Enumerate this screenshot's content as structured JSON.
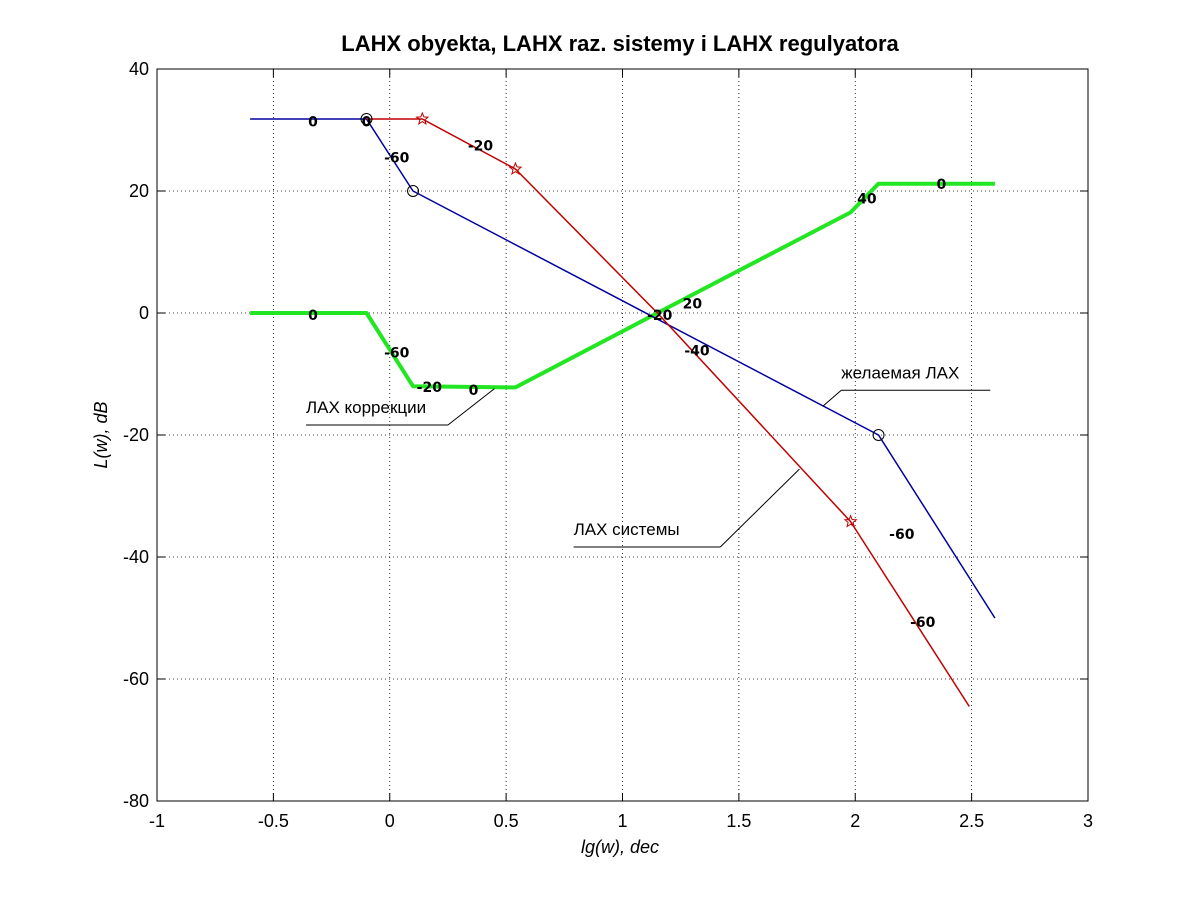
{
  "chart_data": {
    "type": "line",
    "title": "LAHX obyekta, LAHX raz. sistemy i LAHX regulyatora",
    "xlabel": "lg(w), dec",
    "ylabel": "L(w), dB",
    "xlim": [
      -1,
      3
    ],
    "ylim": [
      -80,
      40
    ],
    "xticks": [
      -1,
      -0.5,
      0,
      0.5,
      1,
      1.5,
      2,
      2.5,
      3
    ],
    "xtick_labels": [
      "-1",
      "-0.5",
      "0",
      "0.5",
      "1",
      "1.5",
      "2",
      "2.5",
      "3"
    ],
    "yticks": [
      -80,
      -60,
      -40,
      -20,
      0,
      20,
      40
    ],
    "ytick_labels": [
      "-80",
      "-60",
      "-40",
      "-20",
      "0",
      "20",
      "40"
    ],
    "grid": true,
    "series": [
      {
        "color": "#0000a0",
        "line_width": 1.5,
        "marker": "circle",
        "x": [
          -0.6,
          -0.1,
          0.1,
          2.1,
          2.6
        ],
        "y": [
          31.8,
          31.8,
          20,
          -20,
          -50
        ],
        "marker_points": [
          [
            -0.1,
            31.8
          ],
          [
            0.1,
            20
          ],
          [
            2.1,
            -20
          ]
        ]
      },
      {
        "color": "#c00000",
        "line_width": 1.5,
        "marker": "star",
        "x": [
          -0.1,
          0.14,
          0.54,
          1.15,
          1.98,
          2.49
        ],
        "y": [
          31.8,
          31.8,
          23.6,
          0,
          -34.2,
          -64.5
        ],
        "marker_points": [
          [
            0.14,
            31.8
          ],
          [
            0.54,
            23.6
          ],
          [
            1.98,
            -34.2
          ]
        ]
      },
      {
        "color": "#22e622",
        "line_width": 4,
        "marker": "none",
        "x": [
          -0.6,
          -0.1,
          0.1,
          0.54,
          1.15,
          1.98,
          2.1,
          2.6
        ],
        "y": [
          0,
          0,
          -12,
          -12.2,
          0,
          16.5,
          21.2,
          21.2
        ]
      }
    ],
    "slope_labels": [
      {
        "text": "0",
        "x": -0.33,
        "y": 31.2
      },
      {
        "text": "0",
        "x": -0.1,
        "y": 31.2
      },
      {
        "text": "-60",
        "x": 0.03,
        "y": 25.3
      },
      {
        "text": "-20",
        "x": 0.39,
        "y": 27.3
      },
      {
        "text": "-20",
        "x": 1.16,
        "y": -0.5
      },
      {
        "text": "20",
        "x": 1.3,
        "y": 1.4
      },
      {
        "text": "-40",
        "x": 1.32,
        "y": -6.3
      },
      {
        "text": "40",
        "x": 2.05,
        "y": 18.6
      },
      {
        "text": "0",
        "x": 2.37,
        "y": 21.0
      },
      {
        "text": "-60",
        "x": 2.2,
        "y": -36.4
      },
      {
        "text": "-60",
        "x": 2.29,
        "y": -50.8
      },
      {
        "text": "0",
        "x": -0.33,
        "y": -0.5
      },
      {
        "text": "-60",
        "x": 0.03,
        "y": -6.6
      },
      {
        "text": "-20",
        "x": 0.17,
        "y": -12.3
      },
      {
        "text": "0",
        "x": 0.36,
        "y": -12.8
      }
    ],
    "annotations": [
      {
        "text": "желаемая ЛАХ",
        "x": 1.94,
        "y": -10.7,
        "underline_to": 2.58,
        "leader_to": [
          1.86,
          -15.3
        ]
      },
      {
        "text": "ЛАХ коррекции",
        "x": -0.36,
        "y": -16.4,
        "underline_to": 0.25,
        "leader_to": [
          0.45,
          -12.4
        ]
      },
      {
        "text": "ЛАХ системы",
        "x": 0.79,
        "y": -36.4,
        "underline_to": 1.42,
        "leader_to": [
          1.76,
          -25.6
        ]
      }
    ]
  }
}
